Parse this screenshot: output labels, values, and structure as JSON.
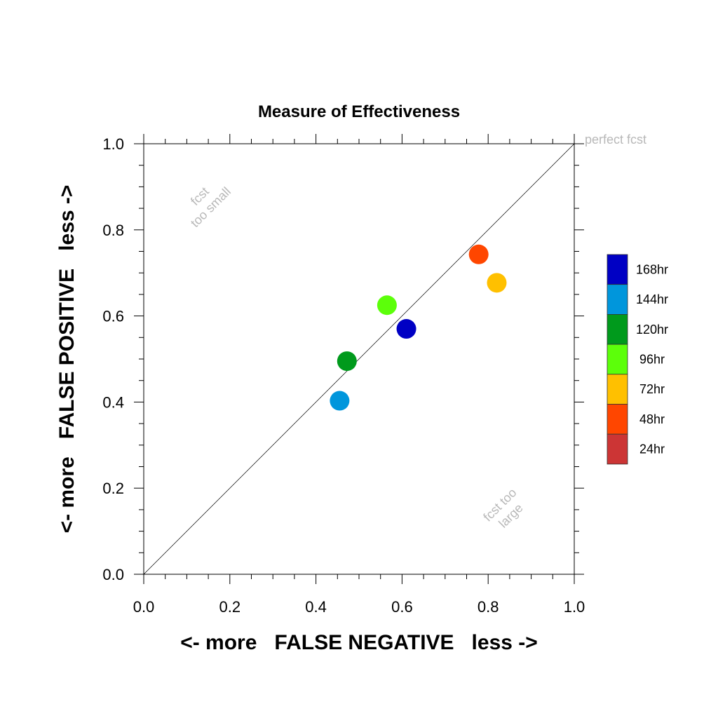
{
  "chart_data": {
    "type": "scatter",
    "title": "Measure of Effectiveness",
    "xlabel": "<- more   FALSE NEGATIVE   less ->",
    "ylabel": "<- more   FALSE POSITIVE   less ->",
    "xlim": [
      0.0,
      1.0
    ],
    "ylim": [
      0.0,
      1.0
    ],
    "x_ticks": [
      "0.0",
      "0.2",
      "0.4",
      "0.6",
      "0.8",
      "1.0"
    ],
    "y_ticks": [
      "0.0",
      "0.2",
      "0.4",
      "0.6",
      "0.8",
      "1.0"
    ],
    "grid": false,
    "legend_position": "right",
    "reference_line": {
      "from": [
        0.0,
        0.0
      ],
      "to": [
        1.0,
        1.0
      ]
    },
    "annotations": {
      "perfect": "perfect fcst",
      "too_small_line1": "fcst",
      "too_small_line2": "too small",
      "too_large_line1": "fcst too",
      "too_large_line2": "large"
    },
    "series": [
      {
        "name": "168hr",
        "color": "#0000c4",
        "x": 0.61,
        "y": 0.57
      },
      {
        "name": "144hr",
        "color": "#0096dc",
        "x": 0.455,
        "y": 0.403
      },
      {
        "name": "120hr",
        "color": "#009a1c",
        "x": 0.472,
        "y": 0.495
      },
      {
        "name": "96hr",
        "color": "#5cff0a",
        "x": 0.565,
        "y": 0.625
      },
      {
        "name": "72hr",
        "color": "#ffc000",
        "x": 0.82,
        "y": 0.677
      },
      {
        "name": "48hr",
        "color": "#ff4600",
        "x": 0.778,
        "y": 0.743
      },
      {
        "name": "24hr",
        "color": "#cc3535",
        "x": null,
        "y": null
      }
    ]
  }
}
